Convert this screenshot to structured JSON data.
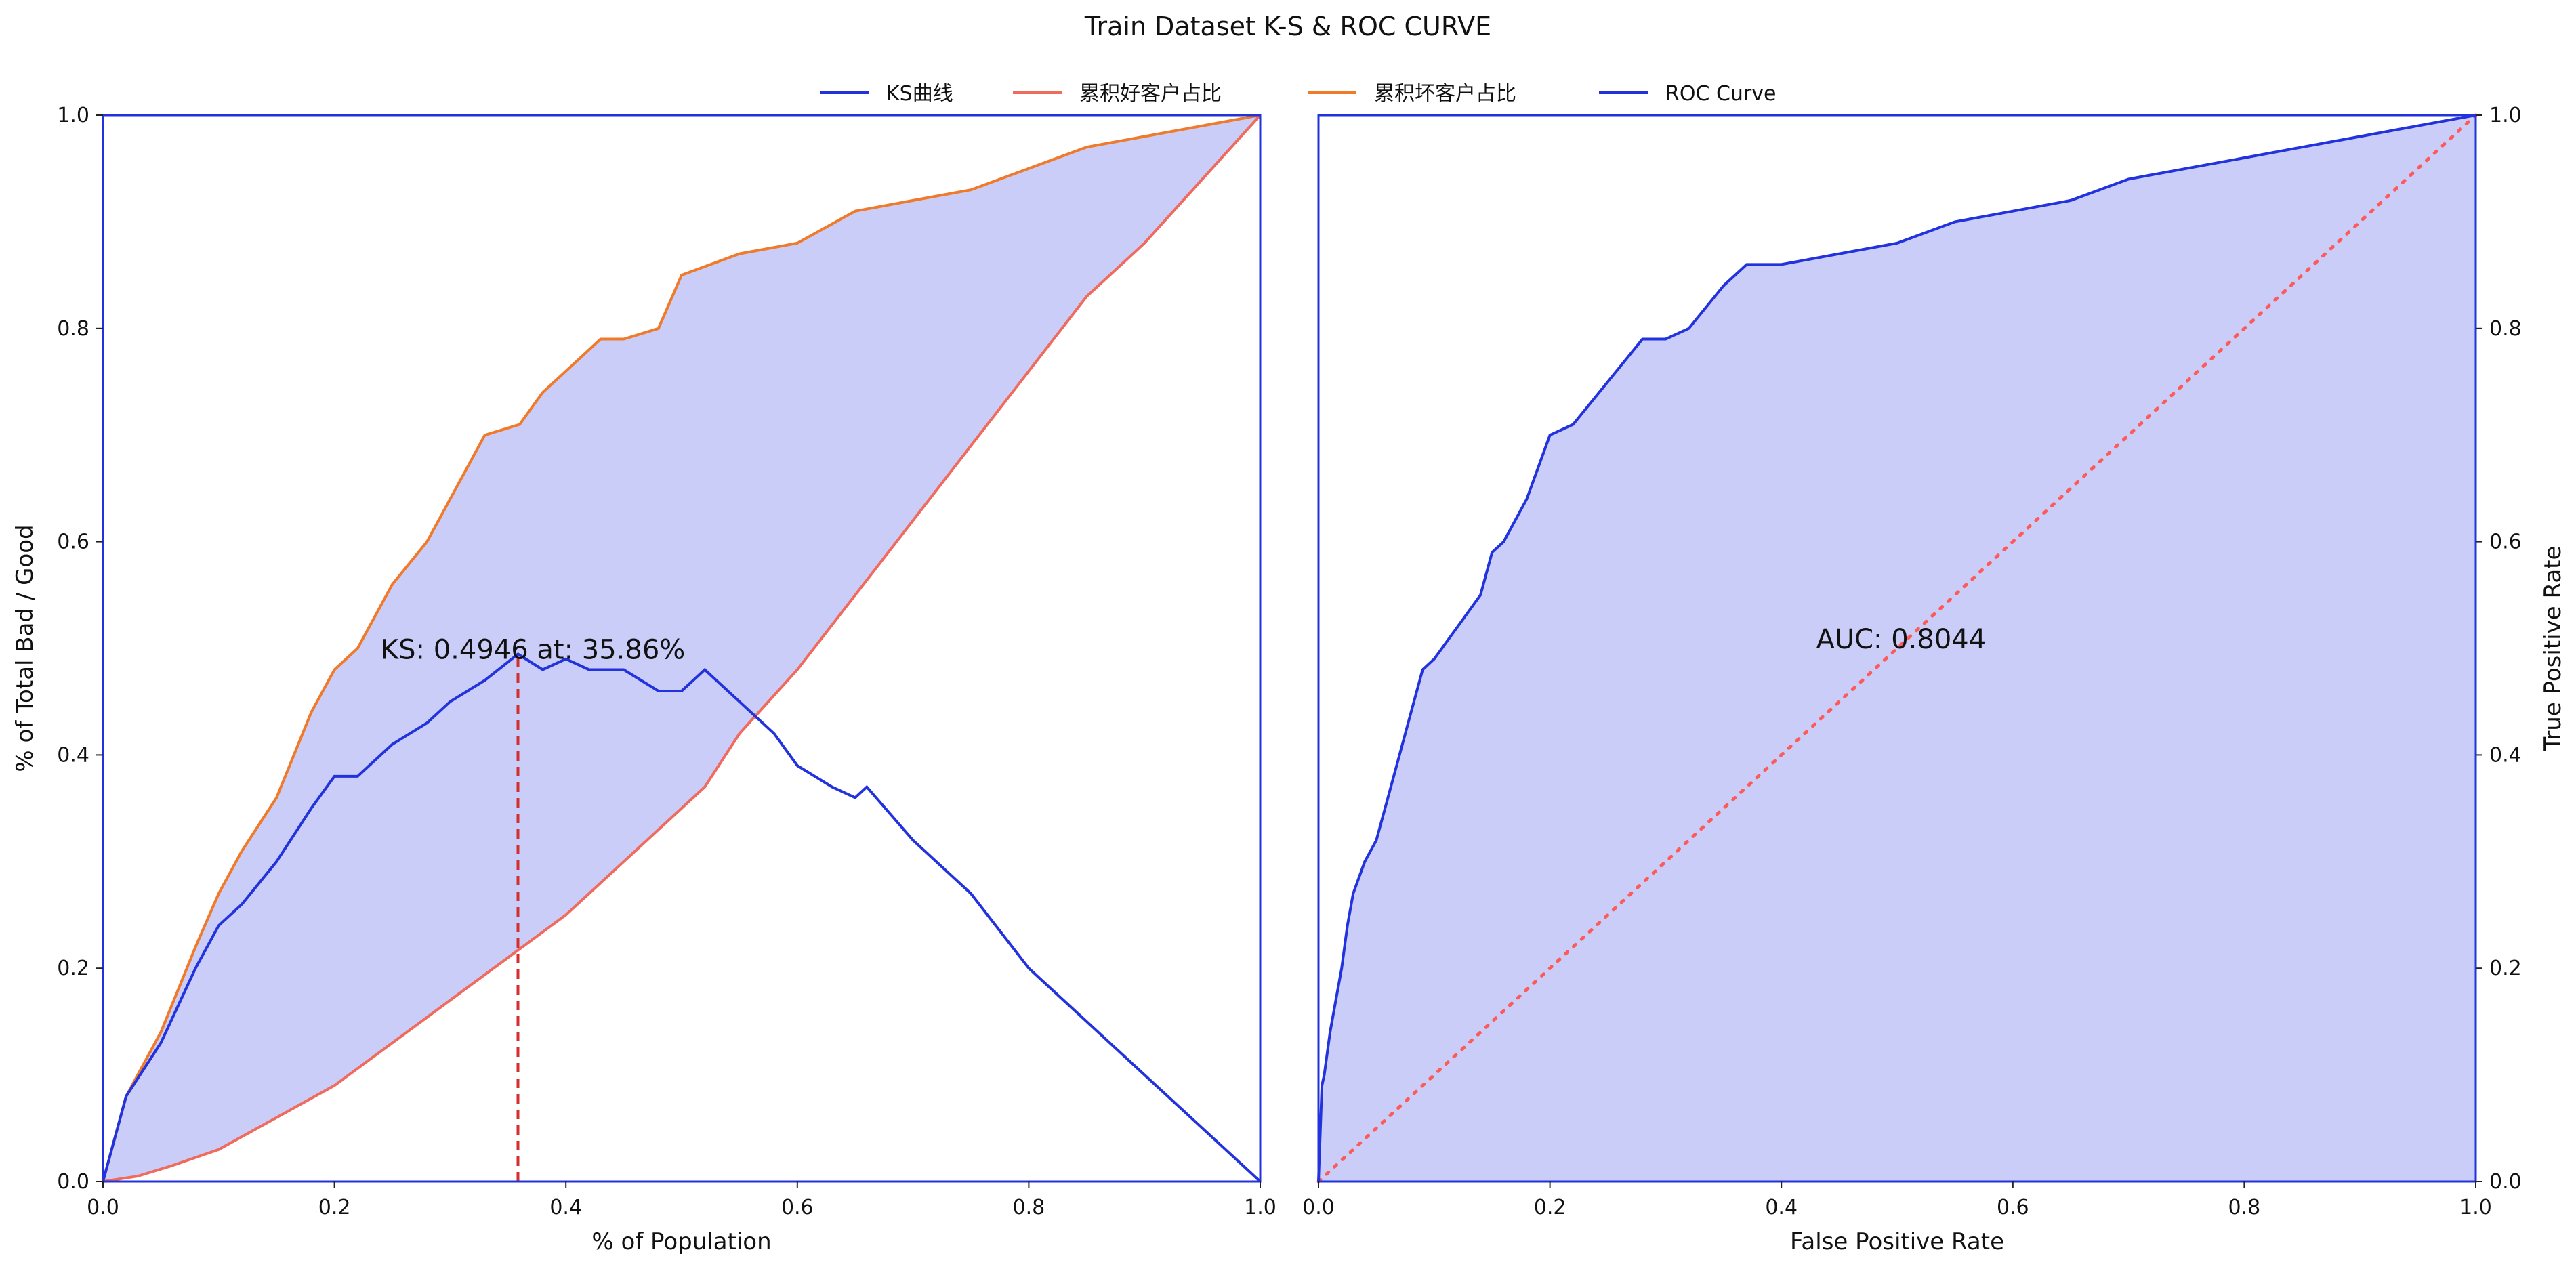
{
  "figure": {
    "title": "Train  Dataset K-S & ROC CURVE"
  },
  "colors": {
    "ks": "#2233dd",
    "good": "#f06a5e",
    "bad": "#f07a2a",
    "roc": "#2233dd",
    "fill": "#c9cdf7",
    "diag": "#ff5a5a",
    "ks_marker": "#d32f2f",
    "frame": "#2233dd"
  },
  "legend": {
    "items": [
      {
        "label": "KS曲线",
        "color": "#2233dd"
      },
      {
        "label": "累积好客户占比",
        "color": "#f06a5e"
      },
      {
        "label": "累积坏客户占比",
        "color": "#f07a2a"
      },
      {
        "label": "ROC Curve",
        "color": "#2233dd"
      }
    ]
  },
  "chart_data": [
    {
      "type": "line",
      "xlabel": "% of Population",
      "ylabel": "% of Total Bad / Good",
      "xlim": [
        0,
        1
      ],
      "ylim": [
        0,
        1
      ],
      "xticks": [
        "0.0",
        "0.2",
        "0.4",
        "0.6",
        "0.8",
        "1.0"
      ],
      "yticks": [
        "0.0",
        "0.2",
        "0.4",
        "0.6",
        "0.8",
        "1.0"
      ],
      "annotation": "KS: 0.4946 at: 35.86%",
      "ks_value": 0.4946,
      "ks_at": 0.3586,
      "series": [
        {
          "name": "KS曲线",
          "x": [
            0,
            0.02,
            0.05,
            0.08,
            0.1,
            0.12,
            0.15,
            0.18,
            0.2,
            0.22,
            0.25,
            0.28,
            0.3,
            0.33,
            0.3586,
            0.38,
            0.4,
            0.42,
            0.45,
            0.48,
            0.5,
            0.52,
            0.55,
            0.58,
            0.6,
            0.63,
            0.65,
            0.66,
            0.7,
            0.75,
            0.8,
            0.85,
            0.9,
            0.95,
            1.0
          ],
          "y": [
            0,
            0.08,
            0.13,
            0.2,
            0.24,
            0.26,
            0.3,
            0.35,
            0.38,
            0.38,
            0.41,
            0.43,
            0.45,
            0.47,
            0.4946,
            0.48,
            0.49,
            0.48,
            0.48,
            0.46,
            0.46,
            0.48,
            0.45,
            0.42,
            0.39,
            0.37,
            0.36,
            0.37,
            0.32,
            0.27,
            0.2,
            0.15,
            0.1,
            0.05,
            0
          ]
        },
        {
          "name": "累积好客户占比",
          "x": [
            0,
            0.03,
            0.06,
            0.1,
            0.15,
            0.2,
            0.25,
            0.3,
            0.35,
            0.4,
            0.45,
            0.5,
            0.52,
            0.55,
            0.6,
            0.65,
            0.7,
            0.75,
            0.8,
            0.85,
            0.9,
            0.95,
            1.0
          ],
          "y": [
            0,
            0.005,
            0.015,
            0.03,
            0.06,
            0.09,
            0.13,
            0.17,
            0.21,
            0.25,
            0.3,
            0.35,
            0.37,
            0.42,
            0.48,
            0.55,
            0.62,
            0.69,
            0.76,
            0.83,
            0.88,
            0.94,
            1.0
          ]
        },
        {
          "name": "累积坏客户占比",
          "x": [
            0,
            0.02,
            0.05,
            0.08,
            0.1,
            0.12,
            0.15,
            0.18,
            0.2,
            0.22,
            0.25,
            0.28,
            0.3,
            0.33,
            0.36,
            0.38,
            0.4,
            0.43,
            0.45,
            0.48,
            0.5,
            0.55,
            0.6,
            0.65,
            0.7,
            0.75,
            0.8,
            0.85,
            0.9,
            0.95,
            1.0
          ],
          "y": [
            0,
            0.08,
            0.14,
            0.22,
            0.27,
            0.31,
            0.36,
            0.44,
            0.48,
            0.5,
            0.56,
            0.6,
            0.64,
            0.7,
            0.71,
            0.74,
            0.76,
            0.79,
            0.79,
            0.8,
            0.85,
            0.87,
            0.88,
            0.91,
            0.92,
            0.93,
            0.95,
            0.97,
            0.98,
            0.99,
            1.0
          ]
        }
      ]
    },
    {
      "type": "area",
      "xlabel": "False Positive Rate",
      "ylabel": "True Positive Rate",
      "xlim": [
        0,
        1
      ],
      "ylim": [
        0,
        1
      ],
      "xticks": [
        "0.0",
        "0.2",
        "0.4",
        "0.6",
        "0.8",
        "1.0"
      ],
      "yticks": [
        "0.0",
        "0.2",
        "0.4",
        "0.6",
        "0.8",
        "1.0"
      ],
      "annotation": "AUC: 0.8044",
      "auc": 0.8044,
      "series": [
        {
          "name": "ROC Curve",
          "x": [
            0,
            0.003,
            0.005,
            0.01,
            0.015,
            0.02,
            0.025,
            0.03,
            0.04,
            0.05,
            0.06,
            0.07,
            0.08,
            0.09,
            0.1,
            0.12,
            0.14,
            0.15,
            0.16,
            0.18,
            0.2,
            0.22,
            0.25,
            0.28,
            0.3,
            0.32,
            0.35,
            0.37,
            0.4,
            0.45,
            0.5,
            0.55,
            0.6,
            0.65,
            0.7,
            0.75,
            0.8,
            0.85,
            0.9,
            0.95,
            1.0
          ],
          "y": [
            0,
            0.09,
            0.1,
            0.14,
            0.17,
            0.2,
            0.24,
            0.27,
            0.3,
            0.32,
            0.36,
            0.4,
            0.44,
            0.48,
            0.49,
            0.52,
            0.55,
            0.59,
            0.6,
            0.64,
            0.7,
            0.71,
            0.75,
            0.79,
            0.79,
            0.8,
            0.84,
            0.86,
            0.86,
            0.87,
            0.88,
            0.9,
            0.91,
            0.92,
            0.94,
            0.95,
            0.96,
            0.97,
            0.98,
            0.99,
            1.0
          ]
        }
      ]
    }
  ]
}
